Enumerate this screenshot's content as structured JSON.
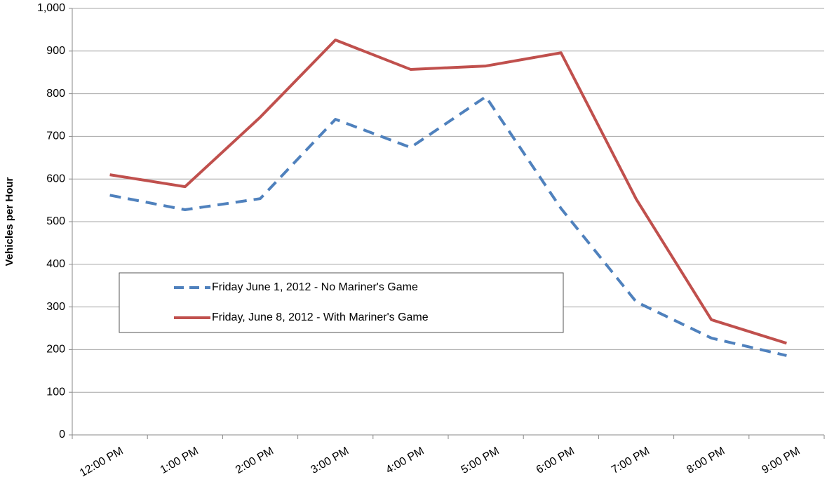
{
  "chart_data": {
    "type": "line",
    "y_label": "Vehicles per Hour",
    "categories": [
      "12:00 PM",
      "1:00 PM",
      "2:00 PM",
      "3:00 PM",
      "4:00 PM",
      "5:00 PM",
      "6:00 PM",
      "7:00 PM",
      "8:00 PM",
      "9:00 PM"
    ],
    "series": [
      {
        "name": "Friday June 1, 2012 - No Mariner's Game",
        "color": "#4f81bd",
        "dashed": true,
        "values": [
          562,
          528,
          554,
          740,
          674,
          793,
          531,
          312,
          227,
          186
        ]
      },
      {
        "name": "Friday, June 8, 2012 - With Mariner's Game",
        "color": "#c0504d",
        "dashed": false,
        "values": [
          610,
          582,
          745,
          926,
          857,
          865,
          896,
          553,
          270,
          215
        ]
      }
    ],
    "ylim": [
      0,
      1000
    ],
    "yticks": [
      0,
      100,
      200,
      300,
      400,
      500,
      600,
      700,
      800,
      900,
      {
        "value": 1000,
        "label": "1,000"
      }
    ],
    "grid": true
  }
}
